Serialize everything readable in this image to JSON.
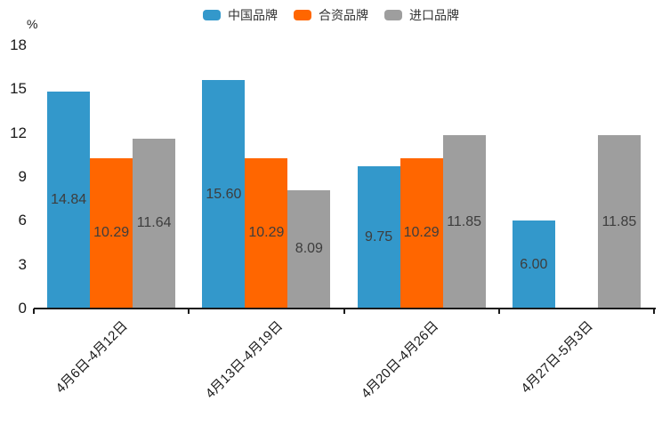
{
  "unit_label": "%",
  "chart_data": {
    "type": "bar",
    "title": "",
    "xlabel": "",
    "ylabel": "%",
    "categories": [
      "4月6日-4月12日",
      "4月13日-4月19日",
      "4月20日-4月26日",
      "4月27日-5月3日"
    ],
    "series": [
      {
        "name": "中国品牌",
        "color": "#3398CB",
        "values": [
          14.84,
          15.6,
          9.75,
          6.0
        ]
      },
      {
        "name": "合资品牌",
        "color": "#FF6600",
        "values": [
          10.29,
          10.29,
          10.29,
          null
        ]
      },
      {
        "name": "进口品牌",
        "color": "#9E9E9E",
        "values": [
          11.64,
          8.09,
          11.85,
          11.85
        ]
      }
    ],
    "yticks": [
      0,
      3,
      6,
      9,
      12,
      15,
      18
    ],
    "ylim": [
      0,
      18
    ],
    "grid": false,
    "value_labels": true,
    "value_label_decimals": 2,
    "legend_position": "top-center"
  }
}
